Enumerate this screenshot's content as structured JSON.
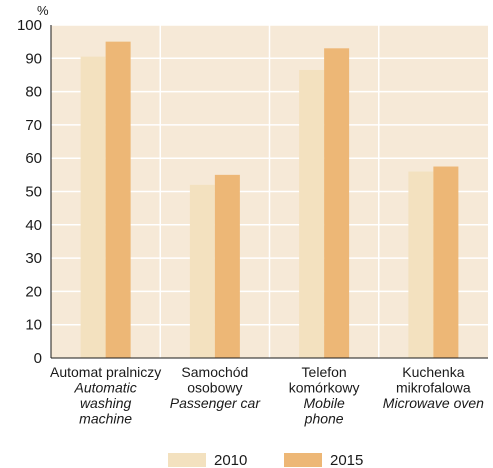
{
  "chart_data": {
    "type": "bar",
    "unit": "%",
    "ylim": [
      0,
      100
    ],
    "yticks": [
      0,
      10,
      20,
      30,
      40,
      50,
      60,
      70,
      80,
      90,
      100
    ],
    "grid": true,
    "legend_position": "bottom",
    "categories": [
      {
        "pl": [
          "Automat pralniczy"
        ],
        "en": [
          "Automatic",
          "washing",
          "machine"
        ]
      },
      {
        "pl": [
          "Samochód",
          "osobowy"
        ],
        "en": [
          "Passenger car"
        ]
      },
      {
        "pl": [
          "Telefon",
          "komórkowy"
        ],
        "en": [
          "Mobile",
          "phone"
        ]
      },
      {
        "pl": [
          "Kuchenka",
          "mikrofalowa"
        ],
        "en": [
          "Microwave oven"
        ]
      }
    ],
    "series": [
      {
        "name": "2010",
        "color": "#f3e1bf",
        "values": [
          90.5,
          52,
          86.5,
          56
        ]
      },
      {
        "name": "2015",
        "color": "#edb776",
        "values": [
          95,
          55,
          93,
          57.5
        ]
      }
    ]
  }
}
